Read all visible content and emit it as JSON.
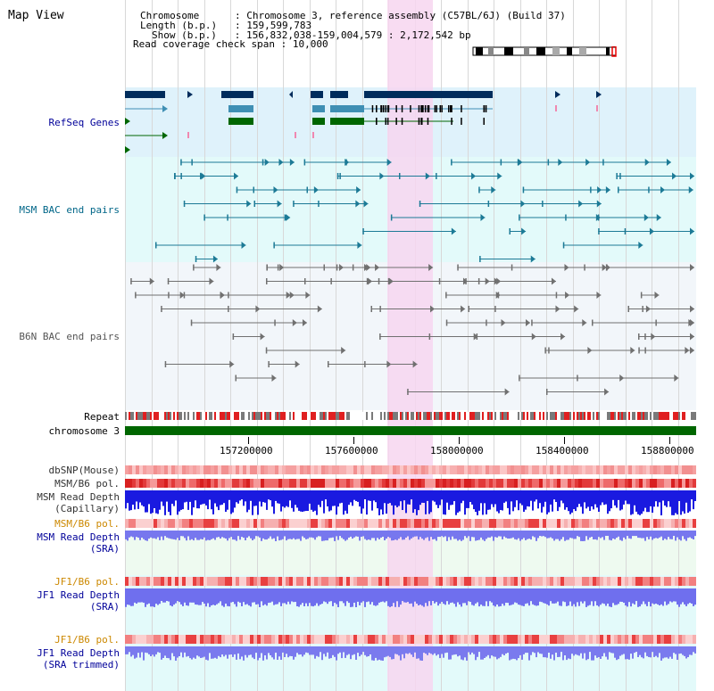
{
  "page": {
    "title": "Map View"
  },
  "info": {
    "chromosome_key": "Chromosome    ",
    "chromosome_val": "Chromosome 3, reference assembly (C57BL/6J) (Build 37)",
    "length_key": "Length (b.p.)",
    "length_val": "159,599,783",
    "show_key": "Show (b.p.)",
    "show_val": "156,832,038-159,004,579 : 2,172,542 bp",
    "coverage_key": "Read coverage check span",
    "coverage_val": "10,000"
  },
  "tracks": {
    "refseq": {
      "label": "RefSeq Genes",
      "color": "#000099"
    },
    "msm_bac": {
      "label": "MSM BAC end pairs",
      "color": "#006688"
    },
    "b6n_bac": {
      "label": "B6N BAC end pairs",
      "color": "#555555"
    },
    "repeat": {
      "label": "Repeat"
    },
    "chromosome": {
      "label": "chromosome 3"
    },
    "dbsnp": {
      "label": "dbSNP(Mouse)"
    },
    "msm_b6_pol_1": {
      "label": "MSM/B6 pol."
    },
    "msm_depth_cap": {
      "label1": "MSM Read Depth",
      "label2": "(Capillary)"
    },
    "msm_b6_pol_2": {
      "label": "MSM/B6 pol.",
      "color": "#cc8800"
    },
    "msm_depth_sra": {
      "label1": "MSM Read Depth",
      "label2": "(SRA)",
      "color": "#000099"
    },
    "jf1_b6_pol_1": {
      "label": "JF1/B6 pol.",
      "color": "#cc8800"
    },
    "jf1_depth_sra": {
      "label1": "JF1 Read Depth",
      "label2": "(SRA)",
      "color": "#000099"
    },
    "jf1_b6_pol_2": {
      "label": "JF1/B6 pol.",
      "color": "#cc8800"
    },
    "jf1_depth_trim": {
      "label1": "JF1 Read Depth",
      "label2": "(SRA trimmed)",
      "color": "#000099"
    }
  },
  "axis": {
    "ticks": [
      "157200000",
      "157600000",
      "158000000",
      "158400000",
      "158800000"
    ]
  },
  "colors": {
    "highlight": "#f7d6f0",
    "refseq_bg": "#dff2fb",
    "msm_bg": "#e3fafa",
    "b6n_bg": "#f2f6fa",
    "sra_bg": "#eefaf0",
    "jf1_bg": "#e3fafa",
    "gene_dark": "#002c5c",
    "gene_mid": "#3f8fb4",
    "gene_green": "#006600",
    "chrom_green": "#006600",
    "snp_pink": "#f7a3a3",
    "pol_red": "#e23a3a",
    "depth_blue": "#1a1ae0",
    "sra_blue": "#7777ee"
  }
}
